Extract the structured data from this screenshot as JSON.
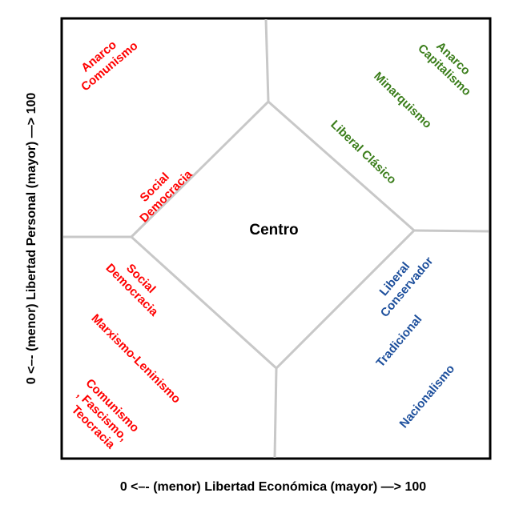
{
  "center_label": "Centro",
  "x_axis_label": "0  <–- (menor) Libertad Económica (mayor) —> 100",
  "y_axis_label": "0  <–- (menor) Libertad Personal (mayor) —> 100",
  "regions": {
    "top_left": {
      "color": "#ff0000",
      "labels": [
        {
          "lines": [
            "Anarco",
            "Comunismo"
          ]
        },
        {
          "lines": [
            "Social",
            "Democracia"
          ]
        }
      ]
    },
    "top_right": {
      "color": "#3a7d1a",
      "labels": [
        {
          "lines": [
            "Anarco",
            "Capitalismo"
          ]
        },
        {
          "lines": [
            "Minarquismo"
          ]
        },
        {
          "lines": [
            "Liberal Clásico"
          ]
        }
      ]
    },
    "bottom_left": {
      "color": "#ff0000",
      "labels": [
        {
          "lines": [
            "Social",
            "Democracia"
          ]
        },
        {
          "lines": [
            "Marxismo-Leninismo"
          ]
        },
        {
          "lines": [
            "Comunismo",
            ", Fascismo,",
            "Teocracia"
          ]
        }
      ]
    },
    "bottom_right": {
      "color": "#1d4f9c",
      "labels": [
        {
          "lines": [
            "Liberal",
            "Conservador"
          ]
        },
        {
          "lines": [
            "Tradicional"
          ]
        },
        {
          "lines": [
            "Nacionalismo"
          ]
        }
      ]
    }
  }
}
